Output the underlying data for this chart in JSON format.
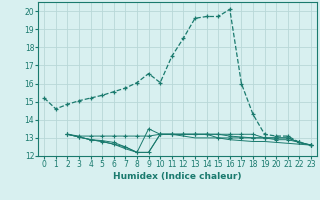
{
  "x_main": [
    0,
    1,
    2,
    3,
    4,
    5,
    6,
    7,
    8,
    9,
    10,
    11,
    12,
    13,
    14,
    15,
    16,
    17,
    18,
    19,
    20,
    21,
    22,
    23
  ],
  "y_main": [
    15.2,
    14.6,
    14.85,
    15.05,
    15.2,
    15.35,
    15.55,
    15.75,
    16.05,
    16.55,
    16.05,
    17.5,
    18.5,
    19.6,
    19.7,
    19.7,
    20.1,
    16.0,
    14.3,
    13.2,
    13.1,
    13.1,
    12.75,
    12.6
  ],
  "x_line1": [
    2,
    3,
    4,
    5,
    6,
    7,
    8,
    9,
    10,
    11,
    12,
    13,
    14,
    15,
    16,
    17,
    18,
    19,
    20,
    21,
    22,
    23
  ],
  "y_line1": [
    13.2,
    13.1,
    13.1,
    13.1,
    13.1,
    13.1,
    13.1,
    13.1,
    13.2,
    13.2,
    13.2,
    13.2,
    13.2,
    13.2,
    13.2,
    13.2,
    13.2,
    13.0,
    13.0,
    13.0,
    12.75,
    12.6
  ],
  "x_line2": [
    2,
    3,
    4,
    5,
    6,
    7,
    8,
    9,
    10,
    11,
    12,
    13,
    14,
    15,
    16,
    17,
    18,
    19,
    20,
    21,
    22,
    23
  ],
  "y_line2": [
    13.2,
    13.05,
    12.9,
    12.85,
    12.75,
    12.5,
    12.2,
    12.2,
    13.2,
    13.2,
    13.2,
    13.2,
    13.2,
    13.2,
    13.1,
    13.05,
    13.0,
    13.0,
    13.0,
    13.0,
    12.75,
    12.6
  ],
  "x_line3": [
    2,
    3,
    4,
    5,
    6,
    7,
    8,
    9,
    10,
    11,
    12,
    13,
    14,
    15,
    16,
    17,
    18,
    19,
    20,
    21,
    22,
    23
  ],
  "y_line3": [
    13.2,
    13.05,
    12.9,
    12.8,
    12.65,
    12.5,
    12.2,
    13.5,
    13.2,
    13.2,
    13.2,
    13.2,
    13.2,
    13.0,
    13.0,
    13.0,
    13.0,
    13.0,
    12.9,
    12.9,
    12.75,
    12.6
  ],
  "x_line4": [
    2,
    3,
    4,
    5,
    6,
    7,
    8,
    9,
    10,
    11,
    12,
    13,
    14,
    15,
    16,
    17,
    18,
    19,
    20,
    21,
    22,
    23
  ],
  "y_line4": [
    13.2,
    13.05,
    12.9,
    12.8,
    12.65,
    12.4,
    12.2,
    12.2,
    13.2,
    13.2,
    13.1,
    13.0,
    13.0,
    13.0,
    12.9,
    12.85,
    12.8,
    12.8,
    12.75,
    12.7,
    12.65,
    12.6
  ],
  "color": "#1a7a6e",
  "bg_color": "#d8f0f0",
  "grid_color": "#b8d8d8",
  "xlabel": "Humidex (Indice chaleur)",
  "xlim": [
    -0.5,
    23.5
  ],
  "ylim": [
    12,
    20.5
  ],
  "yticks": [
    12,
    13,
    14,
    15,
    16,
    17,
    18,
    19,
    20
  ],
  "xtick_labels": [
    "0",
    "1",
    "2",
    "3",
    "4",
    "5",
    "6",
    "7",
    "8",
    "9",
    "10",
    "11",
    "12",
    "13",
    "14",
    "15",
    "16",
    "17",
    "18",
    "19",
    "20",
    "21",
    "22",
    "23"
  ],
  "font_size": 6.5
}
